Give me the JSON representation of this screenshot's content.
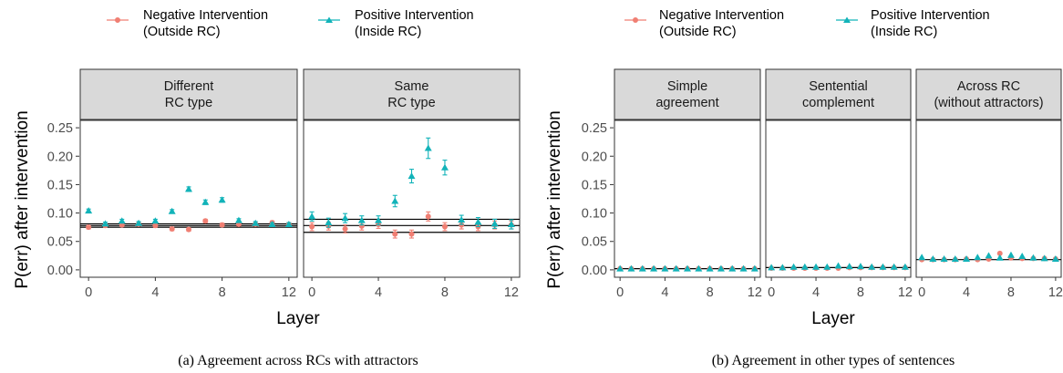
{
  "legend": {
    "negative": [
      "Negative Intervention",
      "(Outside RC)"
    ],
    "positive": [
      "Positive Intervention",
      "(Inside RC)"
    ]
  },
  "colors": {
    "negative": "#f07f73",
    "positive": "#12b3b9",
    "strip": "#d9d9d9",
    "refline": "#000000"
  },
  "axis": {
    "ylabel": "P(err) after intervention",
    "xlabel": "Layer"
  },
  "captions": {
    "a": "(a) Agreement across RCs with attractors",
    "b": "(b) Agreement in other types of sentences"
  },
  "chart_data": [
    {
      "type": "scatter",
      "panel": "a",
      "xlabel": "Layer",
      "ylabel": "P(err) after intervention",
      "xlim": [
        -0.5,
        12.5
      ],
      "ylim": [
        -0.013,
        0.263
      ],
      "xticks": [
        "0",
        "4",
        "8",
        "12"
      ],
      "yticks": [
        "0.00",
        "0.05",
        "0.10",
        "0.15",
        "0.20",
        "0.25"
      ],
      "legend_position": "top",
      "grid": false,
      "facets": [
        {
          "title": [
            "Different",
            "RC type"
          ],
          "reference_lines": [
            0.075,
            0.078,
            0.081
          ],
          "series": [
            {
              "name": "Negative Intervention (Outside RC)",
              "marker": "circle",
              "x": [
                0,
                1,
                2,
                3,
                4,
                5,
                6,
                7,
                8,
                9,
                10,
                11,
                12
              ],
              "y": [
                0.075,
                0.078,
                0.079,
                0.08,
                0.078,
                0.072,
                0.071,
                0.086,
                0.079,
                0.08,
                0.08,
                0.083,
                0.08
              ],
              "err": [
                0.003,
                0.003,
                0.003,
                0.003,
                0.003,
                0.003,
                0.003,
                0.003,
                0.003,
                0.003,
                0.003,
                0.003,
                0.003
              ]
            },
            {
              "name": "Positive Intervention (Inside RC)",
              "marker": "triangle",
              "x": [
                0,
                1,
                2,
                3,
                4,
                5,
                6,
                7,
                8,
                9,
                10,
                11,
                12
              ],
              "y": [
                0.104,
                0.081,
                0.086,
                0.082,
                0.086,
                0.103,
                0.142,
                0.119,
                0.123,
                0.087,
                0.082,
                0.08,
                0.08
              ],
              "err": [
                0.003,
                0.003,
                0.003,
                0.003,
                0.003,
                0.003,
                0.004,
                0.004,
                0.004,
                0.003,
                0.003,
                0.003,
                0.003
              ]
            }
          ]
        },
        {
          "title": [
            "Same",
            "RC type"
          ],
          "reference_lines": [
            0.066,
            0.078,
            0.089
          ],
          "series": [
            {
              "name": "Negative Intervention (Outside RC)",
              "marker": "circle",
              "x": [
                0,
                1,
                2,
                3,
                4,
                5,
                6,
                7,
                8,
                9,
                10,
                11,
                12
              ],
              "y": [
                0.076,
                0.077,
                0.072,
                0.077,
                0.08,
                0.063,
                0.063,
                0.094,
                0.076,
                0.079,
                0.076,
                0.079,
                0.079
              ],
              "err": [
                0.007,
                0.007,
                0.007,
                0.007,
                0.007,
                0.007,
                0.007,
                0.008,
                0.007,
                0.007,
                0.007,
                0.007,
                0.007
              ]
            },
            {
              "name": "Positive Intervention (Inside RC)",
              "marker": "triangle",
              "x": [
                0,
                1,
                2,
                3,
                4,
                5,
                6,
                7,
                8,
                9,
                10,
                11,
                12
              ],
              "y": [
                0.094,
                0.083,
                0.091,
                0.087,
                0.087,
                0.121,
                0.165,
                0.214,
                0.18,
                0.088,
                0.084,
                0.081,
                0.08
              ],
              "err": [
                0.008,
                0.008,
                0.008,
                0.008,
                0.008,
                0.01,
                0.012,
                0.018,
                0.013,
                0.008,
                0.008,
                0.008,
                0.008
              ]
            }
          ]
        }
      ]
    },
    {
      "type": "scatter",
      "panel": "b",
      "xlabel": "Layer",
      "ylabel": "P(err) after intervention",
      "xlim": [
        -0.5,
        12.5
      ],
      "ylim": [
        -0.013,
        0.263
      ],
      "xticks": [
        "0",
        "4",
        "8",
        "12"
      ],
      "yticks": [
        "0.00",
        "0.05",
        "0.10",
        "0.15",
        "0.20",
        "0.25"
      ],
      "legend_position": "top",
      "grid": false,
      "facets": [
        {
          "title": [
            "Simple",
            "agreement"
          ],
          "reference_lines": [
            0.002
          ],
          "series": [
            {
              "name": "Negative Intervention (Outside RC)",
              "marker": "circle",
              "x": [
                0,
                1,
                2,
                3,
                4,
                5,
                6,
                7,
                8,
                9,
                10,
                11,
                12
              ],
              "y": [
                0.002,
                0.002,
                0.002,
                0.002,
                0.002,
                0.002,
                0.002,
                0.002,
                0.002,
                0.002,
                0.002,
                0.002,
                0.002
              ],
              "err": []
            },
            {
              "name": "Positive Intervention (Inside RC)",
              "marker": "triangle",
              "x": [
                0,
                1,
                2,
                3,
                4,
                5,
                6,
                7,
                8,
                9,
                10,
                11,
                12
              ],
              "y": [
                0.002,
                0.002,
                0.002,
                0.002,
                0.002,
                0.002,
                0.002,
                0.002,
                0.002,
                0.002,
                0.002,
                0.002,
                0.002
              ],
              "err": []
            }
          ]
        },
        {
          "title": [
            "Sentential",
            "complement"
          ],
          "reference_lines": [
            0.004
          ],
          "series": [
            {
              "name": "Negative Intervention (Outside RC)",
              "marker": "circle",
              "x": [
                0,
                1,
                2,
                3,
                4,
                5,
                6,
                7,
                8,
                9,
                10,
                11,
                12
              ],
              "y": [
                0.003,
                0.003,
                0.003,
                0.003,
                0.003,
                0.003,
                0.003,
                0.004,
                0.004,
                0.004,
                0.004,
                0.004,
                0.004
              ],
              "err": []
            },
            {
              "name": "Positive Intervention (Inside RC)",
              "marker": "triangle",
              "x": [
                0,
                1,
                2,
                3,
                4,
                5,
                6,
                7,
                8,
                9,
                10,
                11,
                12
              ],
              "y": [
                0.004,
                0.004,
                0.005,
                0.005,
                0.005,
                0.005,
                0.007,
                0.006,
                0.006,
                0.005,
                0.005,
                0.005,
                0.005
              ],
              "err": []
            }
          ]
        },
        {
          "title": [
            "Across RC",
            "(without attractors)"
          ],
          "reference_lines": [
            0.018
          ],
          "series": [
            {
              "name": "Negative Intervention (Outside RC)",
              "marker": "circle",
              "x": [
                0,
                1,
                2,
                3,
                4,
                5,
                6,
                7,
                8,
                9,
                10,
                11,
                12
              ],
              "y": [
                0.018,
                0.018,
                0.018,
                0.018,
                0.019,
                0.018,
                0.019,
                0.029,
                0.021,
                0.02,
                0.02,
                0.02,
                0.019
              ],
              "err": []
            },
            {
              "name": "Positive Intervention (Inside RC)",
              "marker": "triangle",
              "x": [
                0,
                1,
                2,
                3,
                4,
                5,
                6,
                7,
                8,
                9,
                10,
                11,
                12
              ],
              "y": [
                0.022,
                0.019,
                0.019,
                0.019,
                0.019,
                0.022,
                0.025,
                0.021,
                0.026,
                0.024,
                0.021,
                0.02,
                0.019
              ],
              "err": []
            }
          ]
        }
      ]
    }
  ]
}
